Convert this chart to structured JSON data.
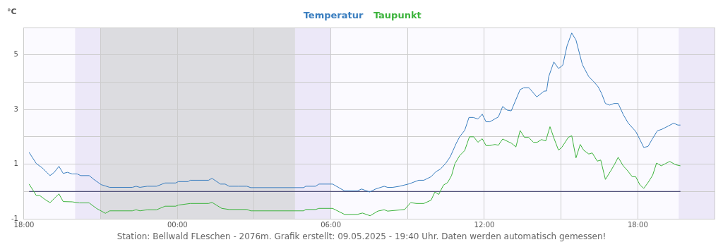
{
  "chart_data": {
    "type": "line",
    "ylabel": "°C",
    "legend": "top",
    "grid": true,
    "marker": "none",
    "line_style": "solid",
    "xlim": [
      "2025-05-08T18:00",
      "2025-05-09T21:00"
    ],
    "ylim": [
      -1,
      6
    ],
    "xticks": [
      {
        "value": "2025-05-08T18:00",
        "label": "18:00"
      },
      {
        "value": "2025-05-08T21:00",
        "label": null
      },
      {
        "value": "2025-05-09T00:00",
        "label": "00:00"
      },
      {
        "value": "2025-05-09T03:00",
        "label": null
      },
      {
        "value": "2025-05-09T06:00",
        "label": "06:00"
      },
      {
        "value": "2025-05-09T09:00",
        "label": null
      },
      {
        "value": "2025-05-09T12:00",
        "label": "12:00"
      },
      {
        "value": "2025-05-09T15:00",
        "label": null
      },
      {
        "value": "2025-05-09T18:00",
        "label": "18:00"
      },
      {
        "value": "2025-05-09T21:00",
        "label": null
      }
    ],
    "yticks": [
      -1,
      {
        "value": 0,
        "label": null
      },
      1,
      {
        "value": 2,
        "label": null
      },
      3,
      {
        "value": 4,
        "label": null
      },
      5,
      {
        "value": 6,
        "label": null
      }
    ],
    "ref_lines": [
      {
        "axis": "y",
        "value": 0,
        "color": "#333366"
      }
    ],
    "bands": [
      {
        "axis": "x",
        "from": "2025-05-08T20:00",
        "to": "2025-05-08T21:00",
        "color": "#ece8f8"
      },
      {
        "axis": "x",
        "from": "2025-05-08T21:00",
        "to": "2025-05-09T04:36",
        "color": "#dcdce0"
      },
      {
        "axis": "x",
        "from": "2025-05-09T04:36",
        "to": "2025-05-09T06:00",
        "color": "#ece8f8"
      },
      {
        "axis": "x",
        "from": "2025-05-09T19:36",
        "to": "2025-05-09T21:00",
        "color": "#ece8f8"
      }
    ],
    "series": [
      {
        "name": "Temperatur",
        "color": "#3a7ebf",
        "x": [
          "2025-05-08T18:12",
          "2025-05-08T18:29",
          "2025-05-08T18:43",
          "2025-05-08T19:01",
          "2025-05-08T19:11",
          "2025-05-08T19:22",
          "2025-05-08T19:32",
          "2025-05-08T19:42",
          "2025-05-08T19:53",
          "2025-05-08T20:05",
          "2025-05-08T20:13",
          "2025-05-08T20:33",
          "2025-05-08T20:44",
          "2025-05-08T21:01",
          "2025-05-08T21:21",
          "2025-05-08T22:14",
          "2025-05-08T22:23",
          "2025-05-08T22:32",
          "2025-05-08T22:49",
          "2025-05-08T23:11",
          "2025-05-08T23:31",
          "2025-05-08T23:56",
          "2025-05-09T00:02",
          "2025-05-09T00:25",
          "2025-05-09T00:30",
          "2025-05-09T01:13",
          "2025-05-09T01:21",
          "2025-05-09T01:41",
          "2025-05-09T01:52",
          "2025-05-09T02:01",
          "2025-05-09T02:23",
          "2025-05-09T02:43",
          "2025-05-09T02:52",
          "2025-05-09T04:56",
          "2025-05-09T05:01",
          "2025-05-09T05:24",
          "2025-05-09T05:32",
          "2025-05-09T06:04",
          "2025-05-09T06:32",
          "2025-05-09T07:02",
          "2025-05-09T07:12",
          "2025-05-09T07:31",
          "2025-05-09T07:45",
          "2025-05-09T08:05",
          "2025-05-09T08:13",
          "2025-05-09T08:25",
          "2025-05-09T08:41",
          "2025-05-09T09:04",
          "2025-05-09T09:26",
          "2025-05-09T09:38",
          "2025-05-09T09:55",
          "2025-05-09T10:06",
          "2025-05-09T10:17",
          "2025-05-09T10:29",
          "2025-05-09T10:40",
          "2025-05-09T10:54",
          "2025-05-09T11:02",
          "2025-05-09T11:14",
          "2025-05-09T11:24",
          "2025-05-09T11:34",
          "2025-05-09T11:45",
          "2025-05-09T11:55",
          "2025-05-09T12:04",
          "2025-05-09T12:13",
          "2025-05-09T12:33",
          "2025-05-09T12:43",
          "2025-05-09T12:53",
          "2025-05-09T13:03",
          "2025-05-09T13:24",
          "2025-05-09T13:32",
          "2025-05-09T13:45",
          "2025-05-09T14:03",
          "2025-05-09T14:20",
          "2025-05-09T14:26",
          "2025-05-09T14:31",
          "2025-05-09T14:43",
          "2025-05-09T14:54",
          "2025-05-09T15:04",
          "2025-05-09T15:14",
          "2025-05-09T15:25",
          "2025-05-09T15:35",
          "2025-05-09T15:50",
          "2025-05-09T16:05",
          "2025-05-09T16:16",
          "2025-05-09T16:27",
          "2025-05-09T16:35",
          "2025-05-09T16:44",
          "2025-05-09T16:54",
          "2025-05-09T17:04",
          "2025-05-09T17:14",
          "2025-05-09T17:26",
          "2025-05-09T17:38",
          "2025-05-09T17:55",
          "2025-05-09T18:03",
          "2025-05-09T18:14",
          "2025-05-09T18:24",
          "2025-05-09T18:34",
          "2025-05-09T18:46",
          "2025-05-09T18:57",
          "2025-05-09T19:11",
          "2025-05-09T19:24",
          "2025-05-09T19:34",
          "2025-05-09T19:40"
        ],
        "values": [
          1.43,
          1.02,
          0.86,
          0.58,
          0.7,
          0.92,
          0.66,
          0.7,
          0.64,
          0.64,
          0.58,
          0.58,
          0.44,
          0.25,
          0.15,
          0.15,
          0.19,
          0.15,
          0.19,
          0.19,
          0.31,
          0.31,
          0.36,
          0.36,
          0.41,
          0.41,
          0.48,
          0.27,
          0.27,
          0.19,
          0.19,
          0.19,
          0.14,
          0.14,
          0.19,
          0.19,
          0.27,
          0.27,
          0.02,
          0.02,
          0.09,
          -0.02,
          0.09,
          0.19,
          0.15,
          0.15,
          0.19,
          0.28,
          0.41,
          0.41,
          0.54,
          0.72,
          0.82,
          1.02,
          1.27,
          1.76,
          2.0,
          2.24,
          2.71,
          2.71,
          2.65,
          2.83,
          2.55,
          2.55,
          2.73,
          3.11,
          2.98,
          2.95,
          3.73,
          3.79,
          3.79,
          3.46,
          3.67,
          3.68,
          4.2,
          4.74,
          4.5,
          4.62,
          5.33,
          5.8,
          5.54,
          4.64,
          4.2,
          4.03,
          3.83,
          3.59,
          3.22,
          3.16,
          3.22,
          3.22,
          2.81,
          2.49,
          2.2,
          1.96,
          1.61,
          1.65,
          1.92,
          2.22,
          2.28,
          2.39,
          2.5,
          2.43,
          2.43
        ]
      },
      {
        "name": "Taupunkt",
        "color": "#3cb33c",
        "x": [
          "2025-05-08T18:12",
          "2025-05-08T18:29",
          "2025-05-08T18:37",
          "2025-05-08T18:49",
          "2025-05-08T19:01",
          "2025-05-08T19:22",
          "2025-05-08T19:32",
          "2025-05-08T19:53",
          "2025-05-08T20:10",
          "2025-05-08T20:33",
          "2025-05-08T20:50",
          "2025-05-08T21:11",
          "2025-05-08T21:21",
          "2025-05-08T22:14",
          "2025-05-08T22:23",
          "2025-05-08T22:32",
          "2025-05-08T22:49",
          "2025-05-08T23:11",
          "2025-05-08T23:31",
          "2025-05-08T23:56",
          "2025-05-09T00:02",
          "2025-05-09T00:30",
          "2025-05-09T01:13",
          "2025-05-09T01:21",
          "2025-05-09T01:44",
          "2025-05-09T02:01",
          "2025-05-09T02:43",
          "2025-05-09T02:52",
          "2025-05-09T04:56",
          "2025-05-09T05:01",
          "2025-05-09T05:24",
          "2025-05-09T05:32",
          "2025-05-09T06:04",
          "2025-05-09T06:32",
          "2025-05-09T07:02",
          "2025-05-09T07:14",
          "2025-05-09T07:32",
          "2025-05-09T07:50",
          "2025-05-09T08:05",
          "2025-05-09T08:13",
          "2025-05-09T08:53",
          "2025-05-09T09:07",
          "2025-05-09T09:21",
          "2025-05-09T09:38",
          "2025-05-09T09:55",
          "2025-05-09T10:04",
          "2025-05-09T10:13",
          "2025-05-09T10:24",
          "2025-05-09T10:34",
          "2025-05-09T10:43",
          "2025-05-09T10:51",
          "2025-05-09T11:02",
          "2025-05-09T11:14",
          "2025-05-09T11:25",
          "2025-05-09T11:35",
          "2025-05-09T11:45",
          "2025-05-09T11:55",
          "2025-05-09T12:04",
          "2025-05-09T12:13",
          "2025-05-09T12:25",
          "2025-05-09T12:33",
          "2025-05-09T12:43",
          "2025-05-09T13:04",
          "2025-05-09T13:14",
          "2025-05-09T13:24",
          "2025-05-09T13:34",
          "2025-05-09T13:44",
          "2025-05-09T13:55",
          "2025-05-09T14:04",
          "2025-05-09T14:14",
          "2025-05-09T14:24",
          "2025-05-09T14:34",
          "2025-05-09T14:44",
          "2025-05-09T14:54",
          "2025-05-09T15:02",
          "2025-05-09T15:17",
          "2025-05-09T15:25",
          "2025-05-09T15:35",
          "2025-05-09T15:45",
          "2025-05-09T15:53",
          "2025-05-09T16:05",
          "2025-05-09T16:13",
          "2025-05-09T16:25",
          "2025-05-09T16:33",
          "2025-05-09T16:44",
          "2025-05-09T16:56",
          "2025-05-09T17:05",
          "2025-05-09T17:14",
          "2025-05-09T17:26",
          "2025-05-09T17:35",
          "2025-05-09T17:47",
          "2025-05-09T17:55",
          "2025-05-09T18:05",
          "2025-05-09T18:14",
          "2025-05-09T18:26",
          "2025-05-09T18:35",
          "2025-05-09T18:44",
          "2025-05-09T18:55",
          "2025-05-09T19:05",
          "2025-05-09T19:15",
          "2025-05-09T19:28",
          "2025-05-09T19:40"
        ],
        "values": [
          0.27,
          -0.15,
          -0.15,
          -0.29,
          -0.41,
          -0.09,
          -0.37,
          -0.38,
          -0.42,
          -0.42,
          -0.62,
          -0.8,
          -0.71,
          -0.71,
          -0.67,
          -0.71,
          -0.67,
          -0.67,
          -0.54,
          -0.54,
          -0.5,
          -0.44,
          -0.44,
          -0.4,
          -0.62,
          -0.66,
          -0.66,
          -0.71,
          -0.71,
          -0.66,
          -0.66,
          -0.62,
          -0.62,
          -0.84,
          -0.84,
          -0.79,
          -0.89,
          -0.72,
          -0.67,
          -0.72,
          -0.66,
          -0.41,
          -0.44,
          -0.44,
          -0.32,
          -0.02,
          -0.11,
          0.23,
          0.33,
          0.58,
          1.02,
          1.31,
          1.5,
          2.0,
          2.0,
          1.8,
          1.93,
          1.68,
          1.68,
          1.72,
          1.69,
          1.92,
          1.76,
          1.63,
          2.23,
          1.98,
          1.98,
          1.8,
          1.8,
          1.9,
          1.85,
          2.37,
          1.92,
          1.51,
          1.62,
          1.98,
          2.04,
          1.23,
          1.72,
          1.51,
          1.37,
          1.41,
          1.11,
          1.15,
          0.44,
          0.74,
          0.98,
          1.25,
          0.93,
          0.78,
          0.54,
          0.54,
          0.24,
          0.11,
          0.37,
          0.6,
          1.04,
          0.94,
          1.02,
          1.1,
          0.98,
          0.94
        ]
      }
    ],
    "annotations": [
      "Station: Bellwald FLeschen - 2076m. Grafik erstellt: 09.05.2025 - 19:40 Uhr. Daten werden automatisch gemessen!"
    ]
  }
}
